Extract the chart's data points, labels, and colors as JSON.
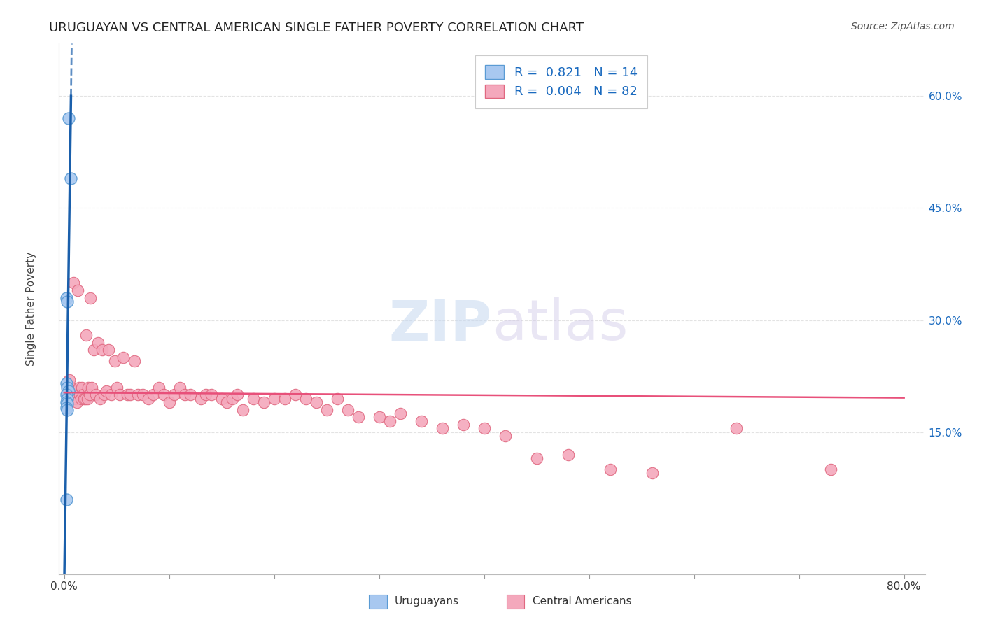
{
  "title": "URUGUAYAN VS CENTRAL AMERICAN SINGLE FATHER POVERTY CORRELATION CHART",
  "source": "Source: ZipAtlas.com",
  "ylabel_label": "Single Father Poverty",
  "y_ticks": [
    0.15,
    0.3,
    0.45,
    0.6
  ],
  "y_tick_labels": [
    "15.0%",
    "30.0%",
    "45.0%",
    "60.0%"
  ],
  "xlim": [
    -0.005,
    0.82
  ],
  "ylim": [
    -0.04,
    0.67
  ],
  "uruguayan_color": "#A8C8F0",
  "uruguayan_edge_color": "#5A9BD4",
  "ca_color": "#F4A8BC",
  "ca_edge_color": "#E06880",
  "blue_line_color": "#1A5FAB",
  "pink_line_color": "#E8507A",
  "R_uru": 0.821,
  "N_uru": 14,
  "R_ca": 0.004,
  "N_ca": 82,
  "watermark_text": "ZIPatlas",
  "uruguayan_x": [
    0.004,
    0.006,
    0.002,
    0.003,
    0.002,
    0.003,
    0.004,
    0.002,
    0.003,
    0.002,
    0.003,
    0.002,
    0.003,
    0.002
  ],
  "uruguayan_y": [
    0.57,
    0.49,
    0.33,
    0.325,
    0.215,
    0.21,
    0.205,
    0.2,
    0.195,
    0.19,
    0.188,
    0.183,
    0.18,
    0.06
  ],
  "ca_x": [
    0.003,
    0.005,
    0.006,
    0.008,
    0.009,
    0.01,
    0.011,
    0.012,
    0.013,
    0.014,
    0.015,
    0.016,
    0.017,
    0.018,
    0.019,
    0.02,
    0.021,
    0.022,
    0.023,
    0.024,
    0.025,
    0.026,
    0.028,
    0.03,
    0.032,
    0.034,
    0.036,
    0.038,
    0.04,
    0.042,
    0.045,
    0.048,
    0.05,
    0.053,
    0.056,
    0.06,
    0.063,
    0.067,
    0.07,
    0.075,
    0.08,
    0.085,
    0.09,
    0.095,
    0.1,
    0.105,
    0.11,
    0.115,
    0.12,
    0.13,
    0.135,
    0.14,
    0.15,
    0.155,
    0.16,
    0.165,
    0.17,
    0.18,
    0.19,
    0.2,
    0.21,
    0.22,
    0.23,
    0.24,
    0.25,
    0.26,
    0.27,
    0.28,
    0.3,
    0.31,
    0.32,
    0.34,
    0.36,
    0.38,
    0.4,
    0.42,
    0.45,
    0.48,
    0.52,
    0.56,
    0.64,
    0.73
  ],
  "ca_y": [
    0.205,
    0.22,
    0.21,
    0.195,
    0.35,
    0.205,
    0.195,
    0.19,
    0.34,
    0.21,
    0.2,
    0.195,
    0.21,
    0.2,
    0.195,
    0.195,
    0.28,
    0.195,
    0.21,
    0.2,
    0.33,
    0.21,
    0.26,
    0.2,
    0.27,
    0.195,
    0.26,
    0.2,
    0.205,
    0.26,
    0.2,
    0.245,
    0.21,
    0.2,
    0.25,
    0.2,
    0.2,
    0.245,
    0.2,
    0.2,
    0.195,
    0.2,
    0.21,
    0.2,
    0.19,
    0.2,
    0.21,
    0.2,
    0.2,
    0.195,
    0.2,
    0.2,
    0.195,
    0.19,
    0.195,
    0.2,
    0.18,
    0.195,
    0.19,
    0.195,
    0.195,
    0.2,
    0.195,
    0.19,
    0.18,
    0.195,
    0.18,
    0.17,
    0.17,
    0.165,
    0.175,
    0.165,
    0.155,
    0.16,
    0.155,
    0.145,
    0.115,
    0.12,
    0.1,
    0.095,
    0.155,
    0.1
  ],
  "ca_line_x": [
    0.0,
    0.8
  ],
  "ca_line_y": [
    0.203,
    0.196
  ],
  "background_color": "#FFFFFF",
  "grid_color": "#DDDDDD",
  "title_fontsize": 13,
  "axis_label_fontsize": 11,
  "tick_fontsize": 11,
  "legend_fontsize": 13
}
